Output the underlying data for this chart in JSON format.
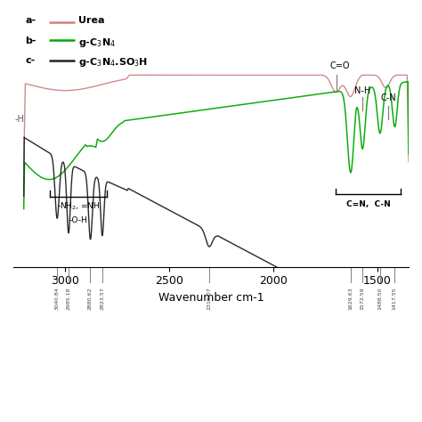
{
  "xlabel": "Wavenumber cm-1",
  "color_a": "#d08080",
  "color_b": "#00aa00",
  "color_c": "#222222",
  "xticks": [
    3000,
    2500,
    2000,
    1500
  ],
  "vlines": [
    3040.84,
    2985.18,
    2880.62,
    2823.57,
    2310.07,
    1629.63,
    1572.59,
    1488.5,
    1417.55
  ],
  "vline_labels": [
    "3040.84",
    "2985.18",
    "2880.62",
    "2823.57",
    "2310.07",
    "1629.63",
    "1572.59",
    "1488.50",
    "1417.55"
  ]
}
